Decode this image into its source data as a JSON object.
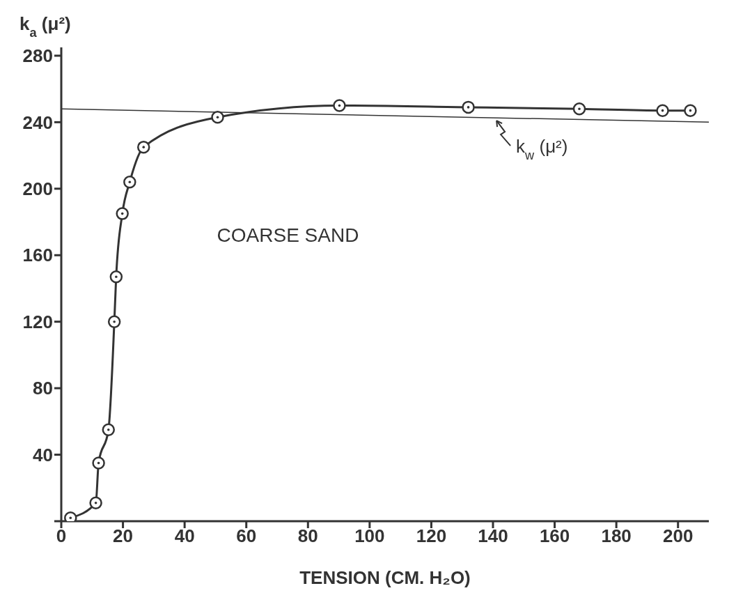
{
  "chart_data": {
    "type": "line",
    "xlabel": "TENSION (CM. H₂O)",
    "ylabel": "k$_{a}$ (μ²)",
    "series": [
      {
        "color": "#333333",
        "marker": "circle",
        "x": [
          3,
          11.2,
          12.1,
          15.3,
          17.2,
          17.8,
          19.8,
          22.2,
          26.7,
          50.7,
          90.2,
          132,
          168,
          195,
          204
        ],
        "values": [
          2,
          11,
          35,
          55,
          120,
          147,
          185,
          204,
          225,
          243,
          250,
          249,
          248,
          247,
          247
        ]
      },
      {
        "type": "line",
        "name": "k$_{w}$ (μ²)",
        "color": "#333333",
        "marker": "none",
        "x": [
          0,
          210
        ],
        "values": [
          248,
          240
        ]
      }
    ],
    "annotations": [
      "COARSE SAND"
    ],
    "xlim": [
      0,
      210
    ],
    "xticks": [
      0,
      20,
      40,
      60,
      80,
      100,
      120,
      140,
      160,
      180,
      200
    ],
    "ylim": [
      0,
      285
    ],
    "yticks": [
      {
        "value": 0,
        "label": null
      },
      40,
      80,
      120,
      160,
      200,
      240,
      280
    ]
  }
}
